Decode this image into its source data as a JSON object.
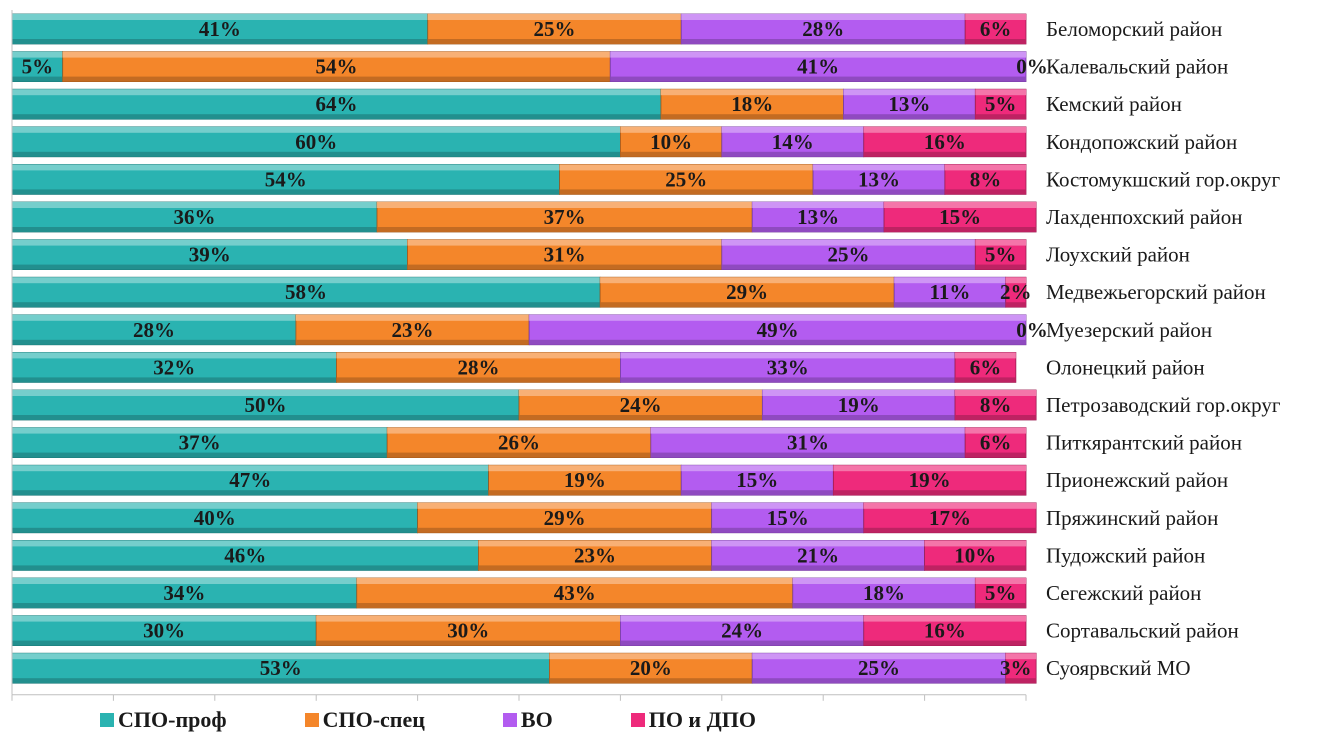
{
  "chart_data": {
    "type": "bar",
    "orientation": "horizontal",
    "stacked": true,
    "percent": true,
    "xlim": [
      0,
      100
    ],
    "grid": false,
    "legend_position": "bottom",
    "categories": [
      "Беломорский район",
      "Калевальский район",
      "Кемский район",
      "Кондопожский район",
      "Костомукшский гор.округ",
      "Лахденпохский район",
      "Лоухский район",
      "Медвежьегорский район",
      "Муезерский  район",
      "Олонецкий район",
      "Петрозаводский гор.округ",
      "Питкярантский район",
      "Прионежский район",
      "Пряжинский район",
      "Пудожский район",
      "Сегежский район",
      "Сортавальский район",
      "Суоярвский МО"
    ],
    "series": [
      {
        "name": "СПО-проф",
        "color": "#2ab3b1",
        "values": [
          41,
          5,
          64,
          60,
          54,
          36,
          39,
          58,
          28,
          32,
          50,
          37,
          47,
          40,
          46,
          34,
          30,
          53
        ],
        "labels": [
          "41%",
          "5%",
          "64%",
          "60%",
          "54%",
          "36%",
          "39%",
          "58%",
          "28%",
          "32%",
          "50%",
          "37%",
          "47%",
          "40%",
          "46%",
          "34%",
          "30%",
          "53%"
        ]
      },
      {
        "name": "СПО-спец",
        "color": "#f4862a",
        "values": [
          25,
          54,
          18,
          10,
          25,
          37,
          31,
          29,
          23,
          28,
          24,
          26,
          19,
          29,
          23,
          43,
          30,
          20
        ],
        "labels": [
          "25%",
          "54%",
          "18%",
          "10%",
          "25%",
          "37%",
          "31%",
          "29%",
          "23%",
          "28%",
          "24%",
          "26%",
          "19%",
          "29%",
          "23%",
          "43%",
          "30%",
          "20%"
        ]
      },
      {
        "name": "ВО",
        "color": "#b35cf0",
        "values": [
          28,
          41,
          13,
          14,
          13,
          13,
          25,
          11,
          49,
          33,
          19,
          31,
          15,
          15,
          21,
          18,
          24,
          25
        ],
        "labels": [
          "28%",
          "41%",
          "13%",
          "14%",
          "13%",
          "13%",
          "25%",
          "11%",
          "49%",
          "33%",
          "19%",
          "31%",
          "15%",
          "15%",
          "21%",
          "18%",
          "24%",
          "25%"
        ]
      },
      {
        "name": "ПО и ДПО",
        "color": "#ee2a7b",
        "values": [
          6,
          0,
          5,
          16,
          8,
          15,
          5,
          2,
          0,
          6,
          8,
          6,
          19,
          17,
          10,
          5,
          16,
          3
        ],
        "labels": [
          "6%",
          "0%",
          "5%",
          "16%",
          "8%",
          "15%",
          "5%",
          "2%",
          "0%",
          "6%",
          "8%",
          "6%",
          "19%",
          "17%",
          "10%",
          "5%",
          "16%",
          "3%"
        ]
      }
    ]
  }
}
